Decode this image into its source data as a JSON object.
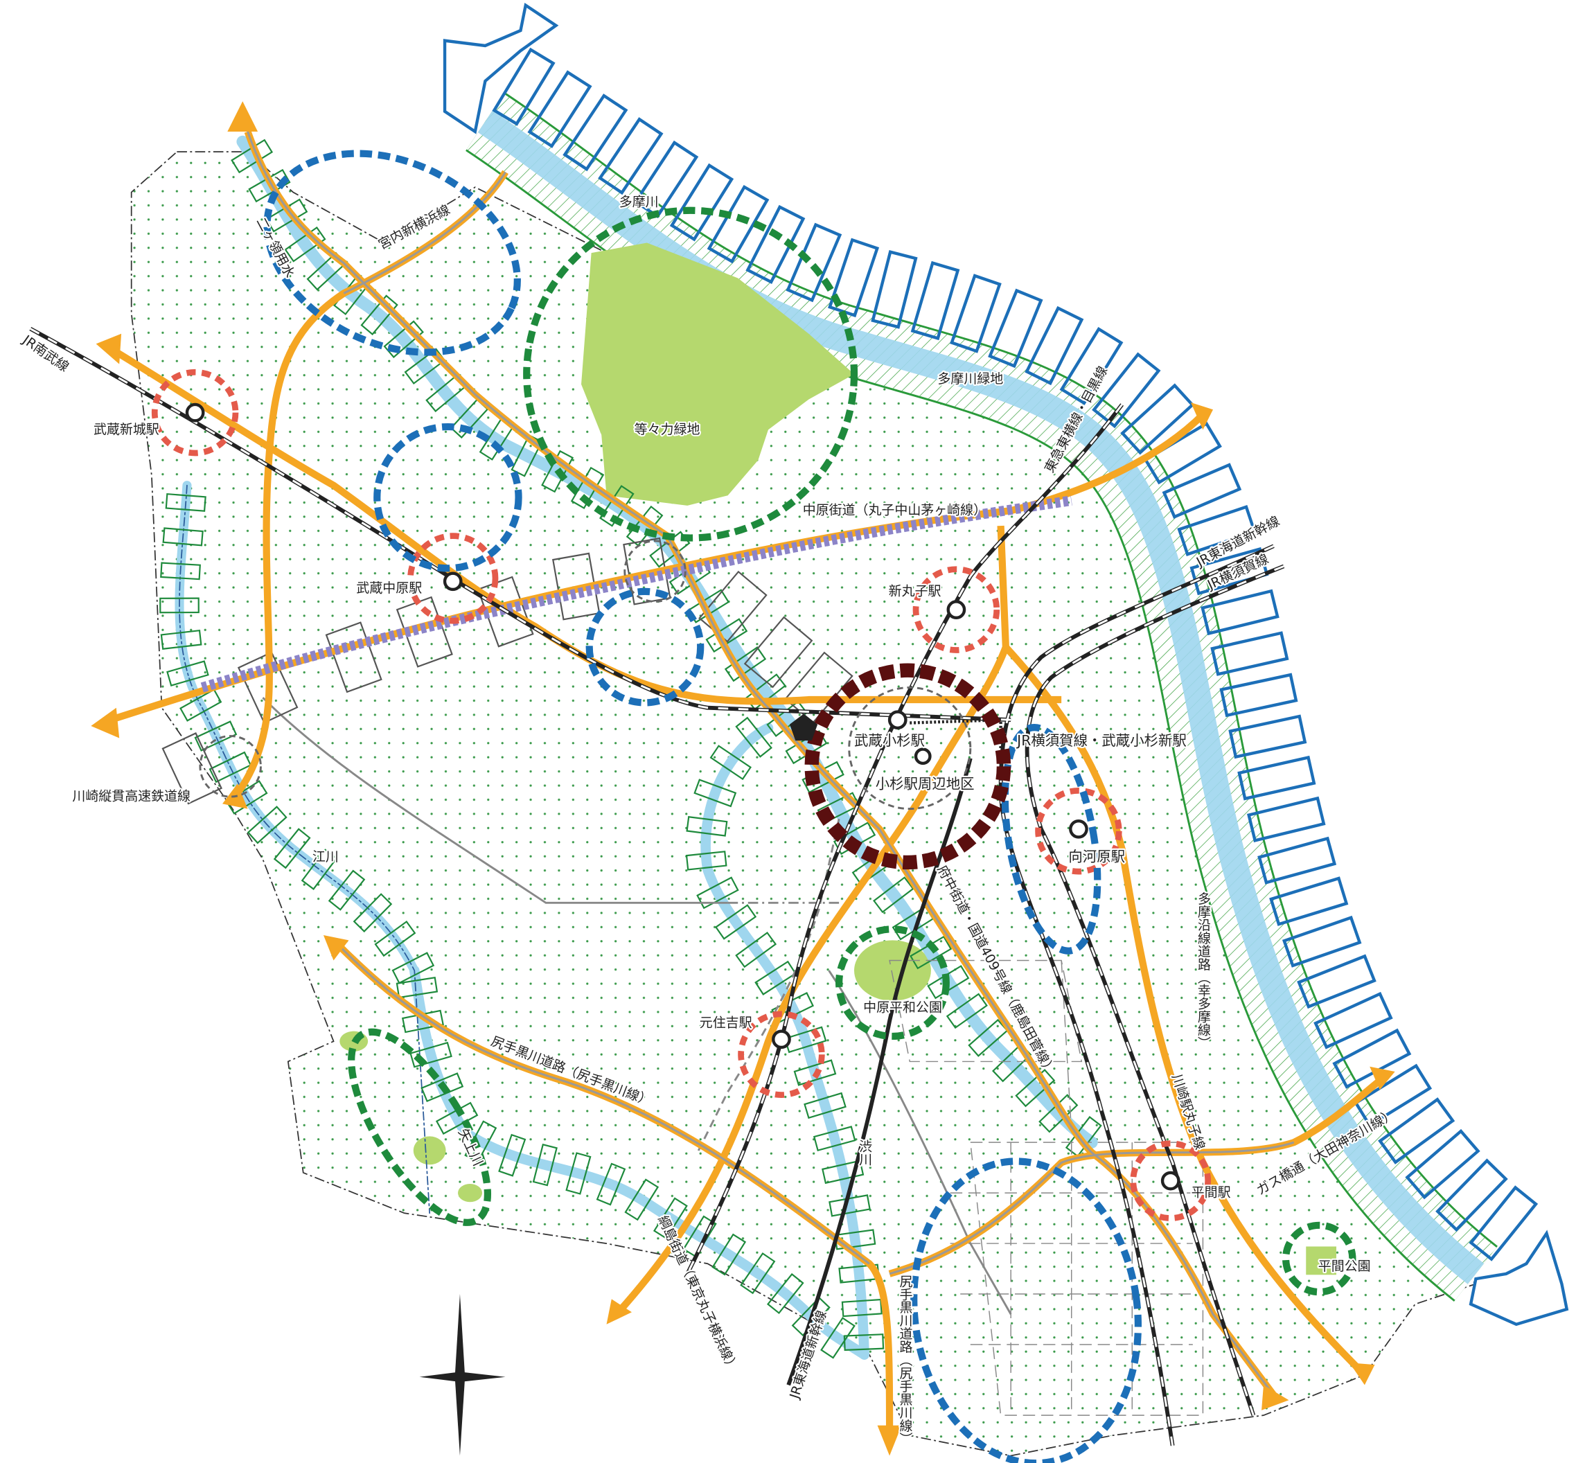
{
  "labels": [
    {
      "text": "JR南武線"
    },
    {
      "text": "武蔵新城駅"
    },
    {
      "text": "二ヶ領用水"
    },
    {
      "text": "宮内新横浜線"
    },
    {
      "text": "多摩川"
    },
    {
      "text": "多摩川緑地"
    },
    {
      "text": "等々力緑地"
    },
    {
      "text": "東急東横線・目黒線"
    },
    {
      "text": "中原街道（丸子中山茅ヶ崎線）"
    },
    {
      "text": "JR東海道新幹線"
    },
    {
      "text": "JR横須賀線"
    },
    {
      "text": "武蔵中原駅"
    },
    {
      "text": "新丸子駅"
    },
    {
      "text": "武蔵小杉駅"
    },
    {
      "text": "JR横須賀線・武蔵小杉新駅"
    },
    {
      "text": "小杉駅周辺地区"
    },
    {
      "text": "川崎縦貫高速鉄道線"
    },
    {
      "text": "向河原駅"
    },
    {
      "text": "江川"
    },
    {
      "text": "府中街道・国道409号線（鹿島田菅線）"
    },
    {
      "text": "多摩沿線道路（幸多摩線）"
    },
    {
      "text": "中原平和公園"
    },
    {
      "text": "元住吉駅"
    },
    {
      "text": "尻手黒川道路（尻手黒川線）"
    },
    {
      "text": "矢上川"
    },
    {
      "text": "川崎駅丸子線"
    },
    {
      "text": "ガス橋通（大田神奈川線）"
    },
    {
      "text": "平間駅"
    },
    {
      "text": "渋川"
    },
    {
      "text": "平間公園"
    },
    {
      "text": "綱島街道（東京丸子横浜線）"
    },
    {
      "text": "JR東海道新幹線"
    },
    {
      "text": "尻手黒川道路（尻手黒川線）"
    }
  ]
}
